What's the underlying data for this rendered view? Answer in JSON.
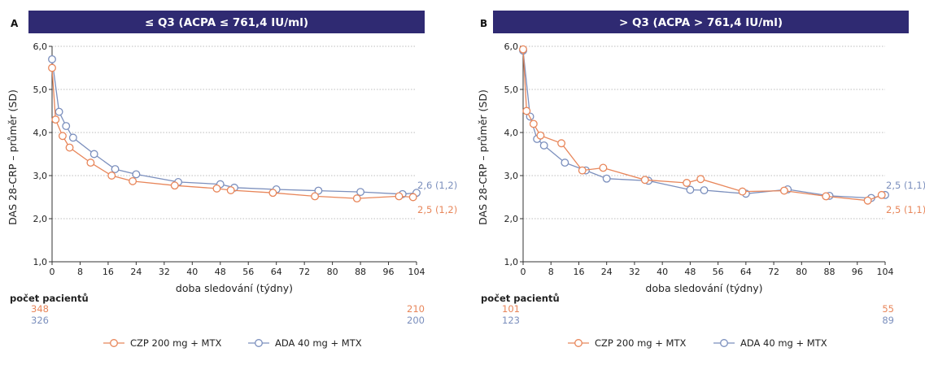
{
  "colors": {
    "header": "#2f2a72",
    "czp": "#e8865a",
    "ada": "#7b8fbd",
    "grid": "#bdbdbd",
    "axis": "#333333"
  },
  "counts_label": "počet pacientů",
  "legend": {
    "czp": "CZP 200 mg + MTX",
    "ada": "ADA 40 mg + MTX"
  },
  "chart_data": [
    {
      "type": "line",
      "panel": "A",
      "title": "≤ Q3 (ACPA ≤ 761,4 IU/ml)",
      "xlabel": "doba sledování (týdny)",
      "ylabel": "DAS 28-CRP – průměr (SD)",
      "xlim": [
        0,
        104
      ],
      "ylim": [
        1.0,
        6.0
      ],
      "xticks": [
        0,
        8,
        16,
        24,
        32,
        40,
        48,
        56,
        64,
        72,
        80,
        88,
        96,
        104
      ],
      "xtick_labels": [
        "0",
        "8",
        "16",
        "24",
        "32",
        "40",
        "48",
        "56",
        "64",
        "72",
        "80",
        "88",
        "96",
        "104"
      ],
      "yticks": [
        1.0,
        2.0,
        3.0,
        4.0,
        5.0,
        6.0
      ],
      "ytick_labels": [
        "1,0",
        "2,0",
        "3,0",
        "4,0",
        "5,0",
        "6,0"
      ],
      "grid": "horizontal",
      "series": [
        {
          "name": "CZP 200 mg + MTX",
          "key": "czp",
          "x": [
            0,
            1,
            3,
            5,
            11,
            17,
            23,
            35,
            47,
            51,
            63,
            75,
            87,
            99,
            103
          ],
          "y": [
            5.5,
            4.3,
            3.92,
            3.65,
            3.3,
            3.0,
            2.87,
            2.77,
            2.7,
            2.66,
            2.6,
            2.52,
            2.47,
            2.52,
            2.5
          ],
          "end_label": "2,5 (1,2)"
        },
        {
          "name": "ADA 40 mg + MTX",
          "key": "ada",
          "x": [
            0,
            2,
            4,
            6,
            12,
            18,
            24,
            36,
            48,
            52,
            64,
            76,
            88,
            100,
            104
          ],
          "y": [
            5.7,
            4.48,
            4.15,
            3.88,
            3.5,
            3.15,
            3.03,
            2.85,
            2.8,
            2.72,
            2.68,
            2.65,
            2.62,
            2.57,
            2.6
          ],
          "end_label": "2,6 (1,2)"
        }
      ],
      "patients": {
        "czp": {
          "start": "348",
          "end": "210"
        },
        "ada": {
          "start": "326",
          "end": "200"
        }
      }
    },
    {
      "type": "line",
      "panel": "B",
      "title": "> Q3 (ACPA > 761,4 IU/ml)",
      "xlabel": "doba sledování (týdny)",
      "ylabel": "DAS 28-CRP – průměr (SD)",
      "xlim": [
        0,
        104
      ],
      "ylim": [
        1.0,
        6.0
      ],
      "xticks": [
        0,
        8,
        16,
        24,
        32,
        40,
        48,
        56,
        64,
        72,
        80,
        88,
        96,
        104
      ],
      "xtick_labels": [
        "0",
        "8",
        "16",
        "24",
        "32",
        "40",
        "48",
        "56",
        "64",
        "72",
        "80",
        "88",
        "96",
        "104"
      ],
      "yticks": [
        1.0,
        2.0,
        3.0,
        4.0,
        5.0,
        6.0
      ],
      "ytick_labels": [
        "1,0",
        "2,0",
        "3,0",
        "4,0",
        "5,0",
        "6,0"
      ],
      "grid": "horizontal",
      "series": [
        {
          "name": "CZP 200 mg + MTX",
          "key": "czp",
          "x": [
            0,
            1,
            3,
            5,
            11,
            17,
            23,
            35,
            47,
            51,
            63,
            75,
            87,
            99,
            103
          ],
          "y": [
            5.93,
            4.5,
            4.2,
            3.93,
            3.75,
            3.12,
            3.18,
            2.9,
            2.83,
            2.92,
            2.63,
            2.65,
            2.52,
            2.42,
            2.55
          ],
          "end_label": "2,5 (1,1)"
        },
        {
          "name": "ADA 40 mg + MTX",
          "key": "ada",
          "x": [
            0,
            2,
            4,
            6,
            12,
            18,
            24,
            36,
            48,
            52,
            64,
            76,
            88,
            100,
            104
          ],
          "y": [
            5.9,
            4.37,
            3.85,
            3.7,
            3.3,
            3.12,
            2.93,
            2.88,
            2.67,
            2.66,
            2.58,
            2.68,
            2.53,
            2.48,
            2.55
          ],
          "end_label": "2,5 (1,1)"
        }
      ],
      "patients": {
        "czp": {
          "start": "101",
          "end": "55"
        },
        "ada": {
          "start": "123",
          "end": "89"
        }
      }
    }
  ]
}
